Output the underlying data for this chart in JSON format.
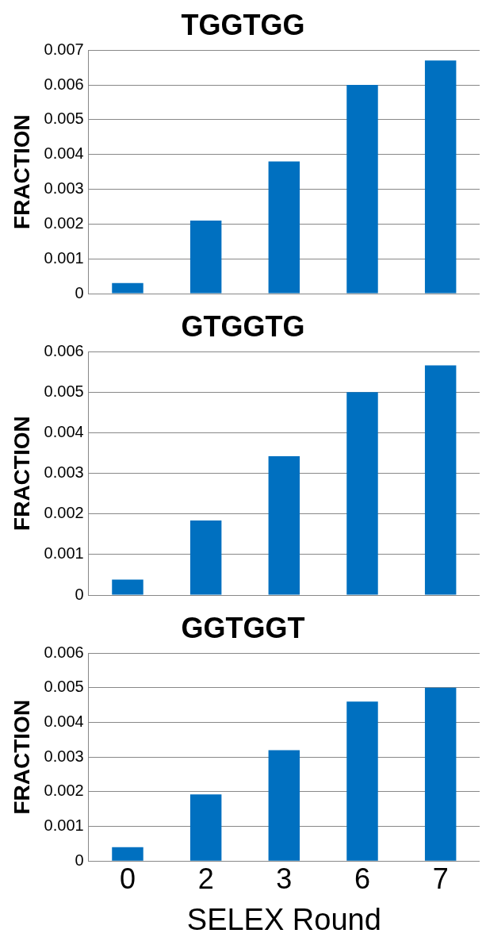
{
  "chart_data": [
    {
      "type": "bar",
      "title": "TGGTGG",
      "ylabel": "FRACTION",
      "categories": [
        "0",
        "2",
        "3",
        "6",
        "7"
      ],
      "values": [
        0.0003,
        0.0021,
        0.0038,
        0.006,
        0.0067
      ],
      "color": "#0070c0",
      "ylim": [
        0,
        0.007
      ],
      "yticks": [
        0,
        0.001,
        0.002,
        0.003,
        0.004,
        0.005,
        0.006,
        0.007
      ],
      "grid": "y",
      "legend": false,
      "tick_labels": "y"
    },
    {
      "type": "bar",
      "title": "GTGGTG",
      "ylabel": "FRACTION",
      "categories": [
        "0",
        "2",
        "3",
        "6",
        "7"
      ],
      "values": [
        0.00038,
        0.00184,
        0.00342,
        0.005,
        0.00566
      ],
      "color": "#0070c0",
      "ylim": [
        0,
        0.006
      ],
      "yticks": [
        0,
        0.001,
        0.002,
        0.003,
        0.004,
        0.005,
        0.006
      ],
      "grid": "y",
      "legend": false,
      "tick_labels": "y"
    },
    {
      "type": "bar",
      "title": "GGTGGT",
      "ylabel": "FRACTION",
      "xlabel": "SELEX Round",
      "categories": [
        "0",
        "2",
        "3",
        "6",
        "7"
      ],
      "values": [
        0.0004,
        0.00192,
        0.0032,
        0.0046,
        0.005
      ],
      "color": "#0070c0",
      "ylim": [
        0,
        0.006
      ],
      "yticks": [
        0,
        0.001,
        0.002,
        0.003,
        0.004,
        0.005,
        0.006
      ],
      "grid": "y",
      "legend": false
    }
  ]
}
